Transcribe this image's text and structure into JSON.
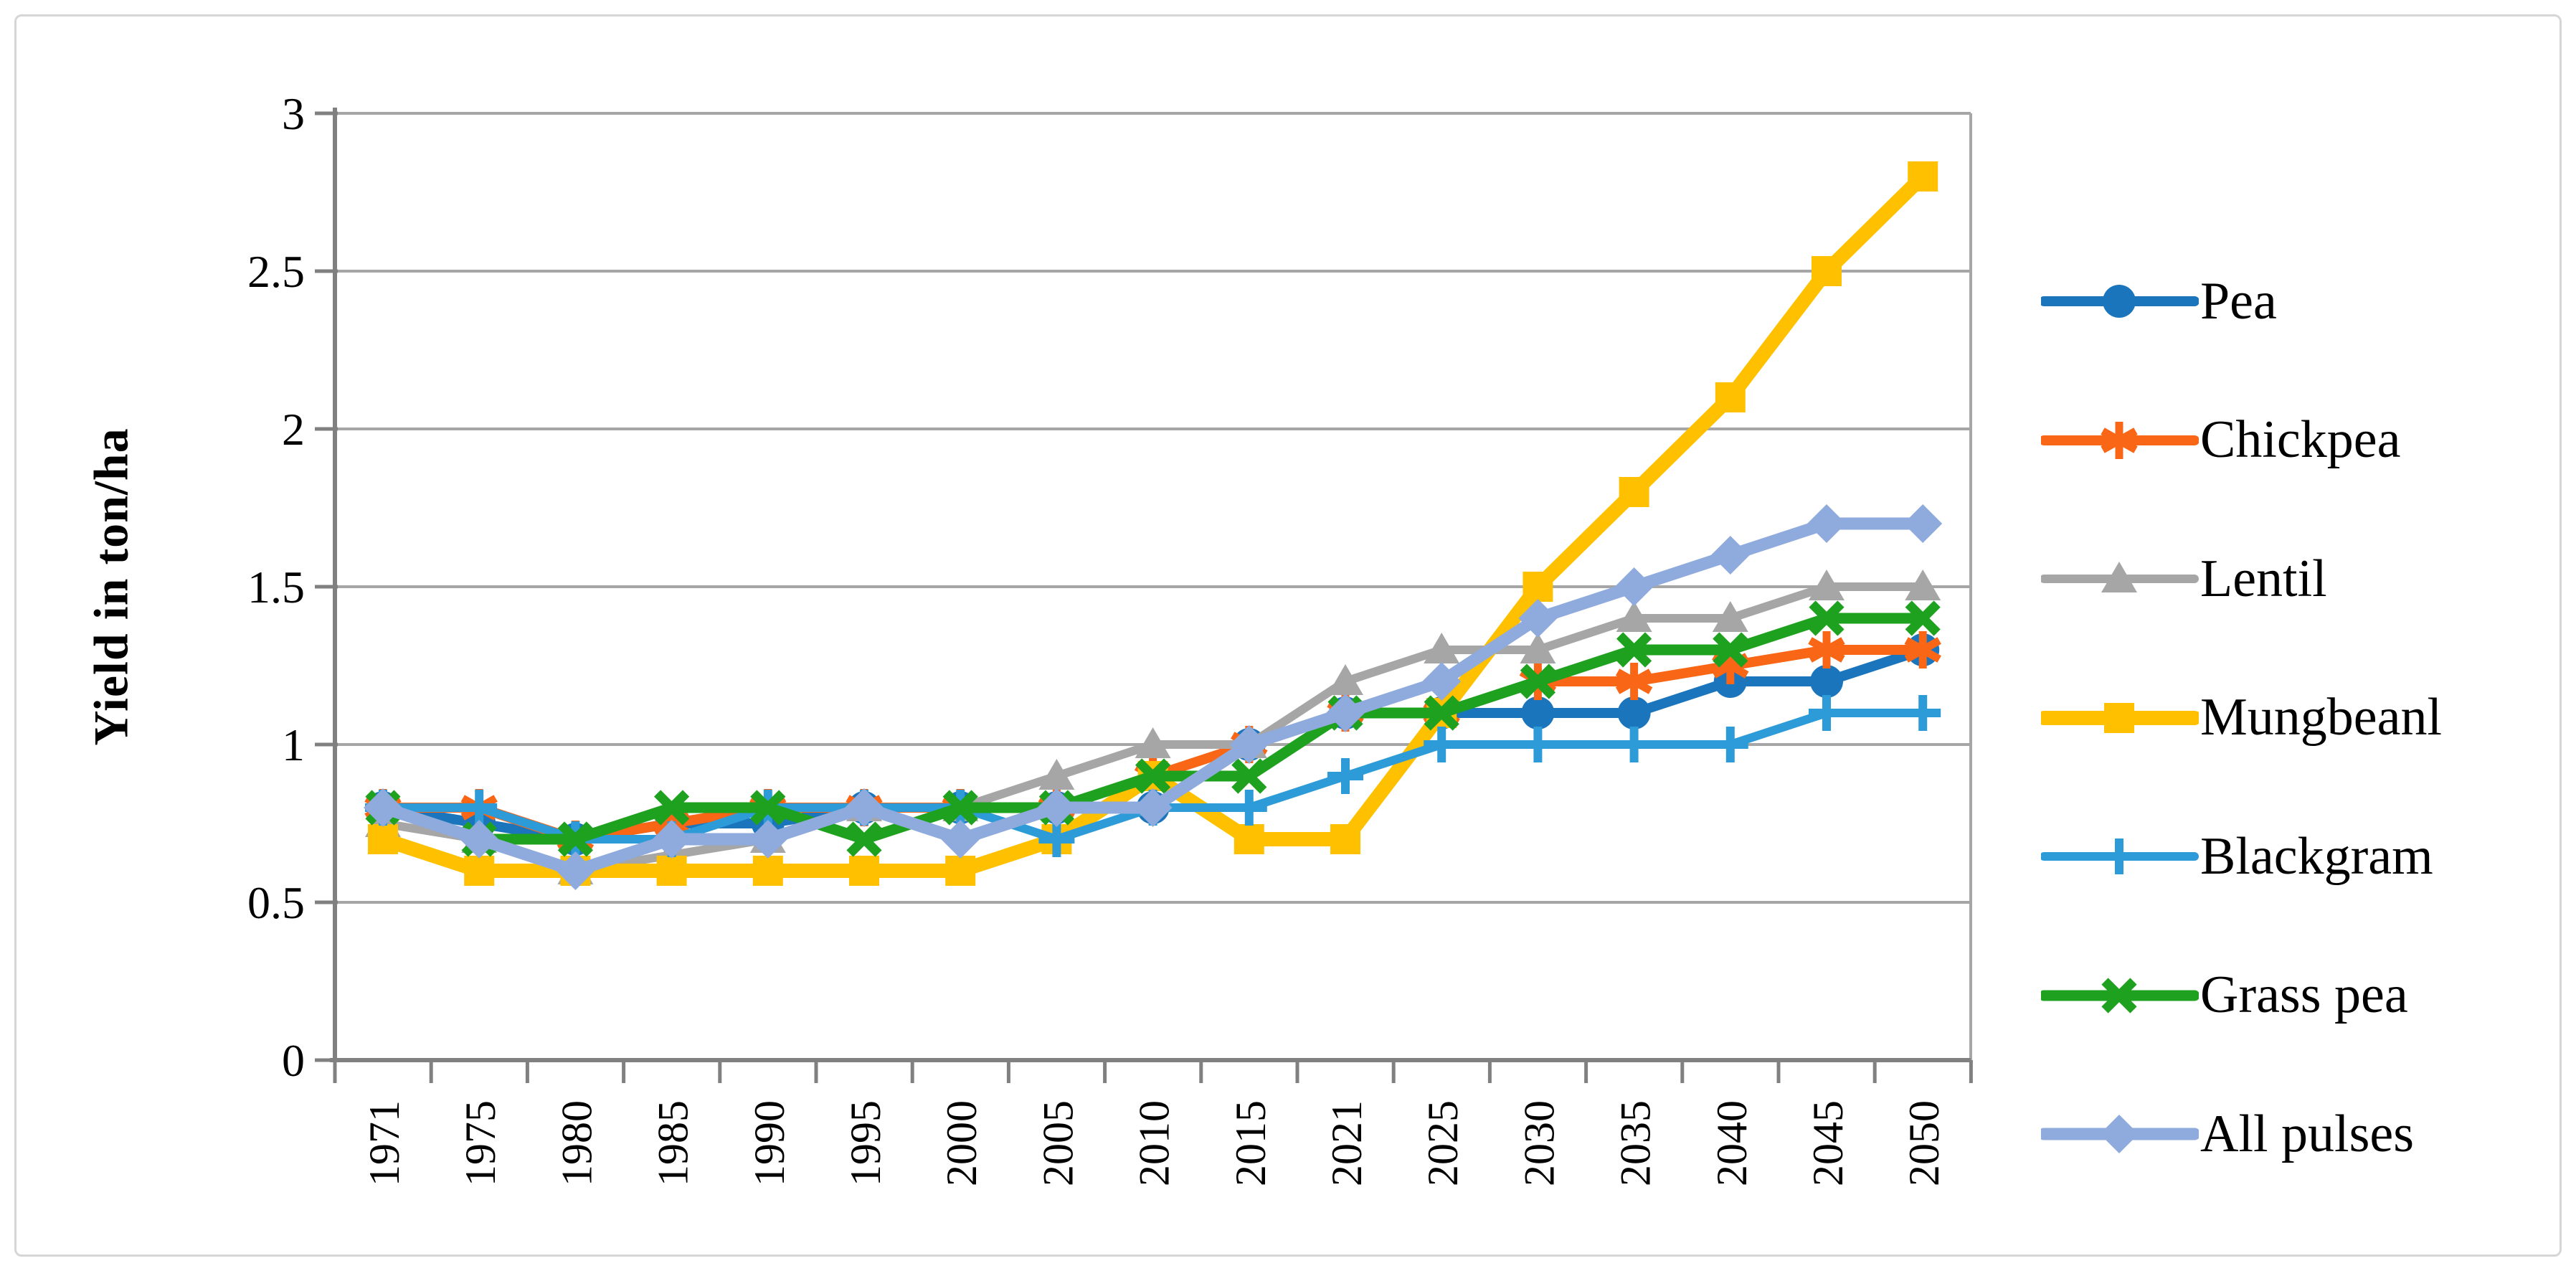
{
  "figure": {
    "background": "#ffffff",
    "border_color": "#d6d6d6"
  },
  "chart_data": {
    "type": "line",
    "title": "",
    "xlabel": "",
    "ylabel": "Yield in ton/ha",
    "ylim": [
      0,
      3
    ],
    "ytick_labels": [
      "0",
      "0.5",
      "1",
      "1.5",
      "2",
      "2.5",
      "3"
    ],
    "grid": true,
    "legend_position": "right",
    "categories": [
      "1971",
      "1975",
      "1980",
      "1985",
      "1990",
      "1995",
      "2000",
      "2005",
      "2010",
      "2015",
      "2021",
      "2025",
      "2030",
      "2035",
      "2040",
      "2045",
      "2050"
    ],
    "series": [
      {
        "name": "Pea",
        "color": "#1b75bc",
        "marker": "circle",
        "line_width": 14,
        "values": [
          0.8,
          0.75,
          0.7,
          0.75,
          0.75,
          0.8,
          0.8,
          0.8,
          0.8,
          1.0,
          1.1,
          1.1,
          1.1,
          1.1,
          1.2,
          1.2,
          1.3
        ]
      },
      {
        "name": "Chickpea",
        "color": "#f96615",
        "marker": "asterisk",
        "line_width": 14,
        "values": [
          0.8,
          0.8,
          0.7,
          0.75,
          0.8,
          0.8,
          0.8,
          0.8,
          0.9,
          1.0,
          1.1,
          1.1,
          1.2,
          1.2,
          1.25,
          1.3,
          1.3
        ]
      },
      {
        "name": "Lentil",
        "color": "#a6a6a6",
        "marker": "triangle",
        "line_width": 12,
        "values": [
          0.75,
          0.7,
          0.6,
          0.65,
          0.7,
          0.8,
          0.8,
          0.9,
          1.0,
          1.0,
          1.2,
          1.3,
          1.3,
          1.4,
          1.4,
          1.5,
          1.5
        ]
      },
      {
        "name": "Mungbeanl",
        "color": "#ffc000",
        "marker": "square",
        "line_width": 20,
        "values": [
          0.7,
          0.6,
          0.6,
          0.6,
          0.6,
          0.6,
          0.6,
          0.7,
          0.9,
          0.7,
          0.7,
          1.1,
          1.5,
          1.8,
          2.1,
          2.5,
          2.8
        ]
      },
      {
        "name": "Blackgram",
        "color": "#2d9bd8",
        "marker": "plus",
        "line_width": 12,
        "values": [
          0.8,
          0.8,
          0.7,
          0.7,
          0.8,
          0.8,
          0.8,
          0.7,
          0.8,
          0.8,
          0.9,
          1.0,
          1.0,
          1.0,
          1.0,
          1.1,
          1.1
        ]
      },
      {
        "name": "Grass pea",
        "color": "#1ea11e",
        "marker": "x",
        "line_width": 15,
        "values": [
          0.8,
          0.7,
          0.7,
          0.8,
          0.8,
          0.7,
          0.8,
          0.8,
          0.9,
          0.9,
          1.1,
          1.1,
          1.2,
          1.3,
          1.3,
          1.4,
          1.4
        ]
      },
      {
        "name": "All pulses",
        "color": "#8faadc",
        "marker": "diamond",
        "line_width": 17,
        "values": [
          0.8,
          0.7,
          0.6,
          0.7,
          0.7,
          0.8,
          0.7,
          0.8,
          0.8,
          1.0,
          1.1,
          1.2,
          1.4,
          1.5,
          1.6,
          1.7,
          1.7
        ]
      }
    ],
    "axis_colors": {
      "gridline": "#a6a6a6",
      "axis_line": "#808080",
      "tick": "#808080",
      "label": "#000000"
    }
  }
}
